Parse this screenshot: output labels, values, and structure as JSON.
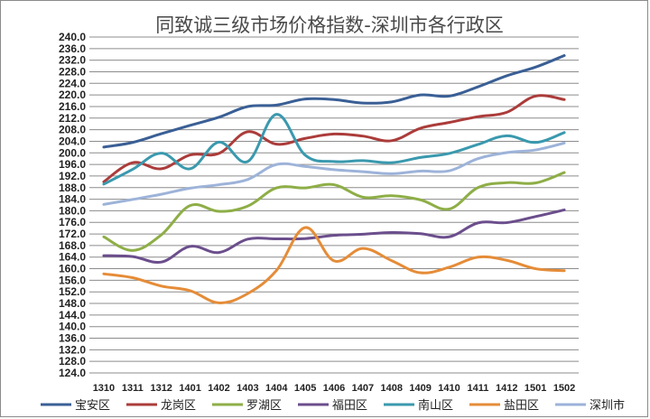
{
  "chart_data": {
    "type": "line",
    "title": "同致诚三级市场价格指数-深圳市各行政区",
    "xlabel": "",
    "ylabel": "",
    "ylim": [
      124,
      240
    ],
    "ytick_step": 4,
    "grid": true,
    "legend_position": "bottom",
    "categories": [
      "1310",
      "1311",
      "1312",
      "1401",
      "1402",
      "1403",
      "1404",
      "1405",
      "1406",
      "1407",
      "1408",
      "1409",
      "1410",
      "1411",
      "1412",
      "1501",
      "1502"
    ],
    "series": [
      {
        "name": "宝安区",
        "color": "#3a5f95",
        "values": [
          202.0,
          203.6,
          206.6,
          209.5,
          212.3,
          216.0,
          216.5,
          218.6,
          218.4,
          217.2,
          217.6,
          220.0,
          219.6,
          222.8,
          226.6,
          229.6,
          233.6
        ]
      },
      {
        "name": "龙岗区",
        "color": "#ab3c3a",
        "values": [
          190.0,
          196.6,
          194.5,
          199.3,
          199.8,
          207.3,
          203.0,
          205.0,
          206.5,
          205.8,
          204.2,
          208.5,
          210.5,
          212.5,
          214.0,
          219.6,
          218.4
        ]
      },
      {
        "name": "罗湖区",
        "color": "#8eae47",
        "values": [
          171.0,
          166.3,
          171.7,
          181.8,
          179.8,
          181.6,
          187.9,
          187.9,
          189.0,
          184.7,
          185.2,
          183.8,
          180.6,
          188.0,
          189.7,
          189.6,
          193.2
        ]
      },
      {
        "name": "福田区",
        "color": "#6b4e8c",
        "values": [
          164.5,
          164.2,
          162.3,
          167.7,
          165.6,
          170.2,
          170.3,
          170.4,
          171.5,
          171.9,
          172.5,
          172.1,
          171.0,
          175.8,
          175.9,
          178.0,
          180.3
        ]
      },
      {
        "name": "南山区",
        "color": "#3a99ae",
        "values": [
          189.2,
          194.3,
          199.9,
          194.5,
          203.7,
          197.0,
          213.3,
          199.2,
          197.0,
          197.3,
          196.6,
          198.4,
          199.8,
          202.9,
          205.9,
          203.6,
          207.0
        ]
      },
      {
        "name": "盐田区",
        "color": "#e58c38",
        "values": [
          158.2,
          156.9,
          154.0,
          152.4,
          148.2,
          151.4,
          159.4,
          174.2,
          162.7,
          167.0,
          162.8,
          158.6,
          160.5,
          164.0,
          162.9,
          160.0,
          159.3
        ]
      },
      {
        "name": "深圳市",
        "color": "#9db3d9",
        "values": [
          182.2,
          183.9,
          185.7,
          187.8,
          189.0,
          190.8,
          196.0,
          195.3,
          194.2,
          193.5,
          192.8,
          193.7,
          193.8,
          198.0,
          200.1,
          201.0,
          203.4
        ]
      }
    ]
  }
}
